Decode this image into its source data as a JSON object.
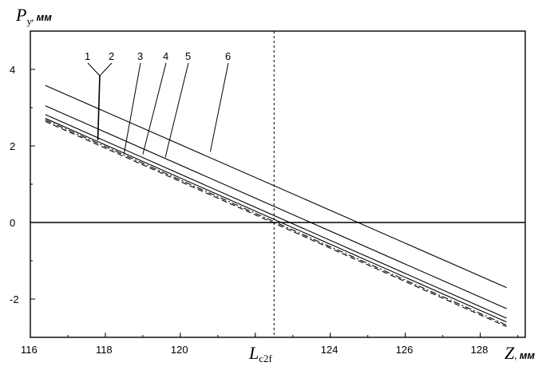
{
  "chart_data": {
    "type": "line",
    "y_axis": {
      "symbol": "P",
      "subscript": "y",
      "unit": "мм",
      "ticks": [
        "4",
        "2",
        "0",
        "-2"
      ],
      "range": [
        -3,
        5
      ]
    },
    "x_axis": {
      "symbol": "Z",
      "unit": "мм",
      "ticks": [
        "116",
        "118",
        "120",
        "124",
        "126",
        "128"
      ],
      "range": [
        116,
        129.2
      ]
    },
    "reference": {
      "x": 122.5,
      "label_main": "L",
      "label_sub": "c2f",
      "style": "dashed"
    },
    "zero_line": true,
    "series": [
      {
        "name": "1",
        "x": [
          116.4,
          128.7
        ],
        "y": [
          2.72,
          -2.6
        ],
        "style": "solid"
      },
      {
        "name": "2",
        "x": [
          116.4,
          128.7
        ],
        "y": [
          2.68,
          -2.68
        ],
        "style": "dashdot"
      },
      {
        "name": "3",
        "x": [
          116.4,
          128.7
        ],
        "y": [
          2.64,
          -2.72
        ],
        "style": "dashed"
      },
      {
        "name": "4",
        "x": [
          116.4,
          128.7
        ],
        "y": [
          2.82,
          -2.5
        ],
        "style": "solid"
      },
      {
        "name": "5",
        "x": [
          116.4,
          128.7
        ],
        "y": [
          3.05,
          -2.25
        ],
        "style": "solid"
      },
      {
        "name": "6",
        "x": [
          116.4,
          128.7
        ],
        "y": [
          3.58,
          -1.7
        ],
        "style": "solid"
      }
    ],
    "callouts": [
      {
        "label": "1",
        "points": [
          [
            117.8,
            2.15
          ]
        ]
      },
      {
        "label": "2",
        "points": [
          [
            117.8,
            2.15
          ]
        ]
      },
      {
        "label": "3",
        "points": [
          [
            118.5,
            1.8
          ]
        ]
      },
      {
        "label": "4",
        "points": [
          [
            119.0,
            1.78
          ]
        ]
      },
      {
        "label": "5",
        "points": [
          [
            119.6,
            1.7
          ]
        ]
      },
      {
        "label": "6",
        "points": [
          [
            120.8,
            1.85
          ]
        ]
      }
    ]
  }
}
